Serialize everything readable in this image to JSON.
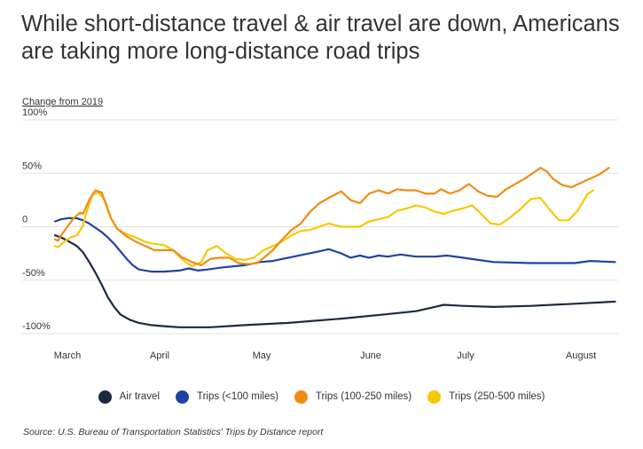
{
  "chart_data": {
    "type": "line",
    "title": "While short-distance travel & air travel are down, Americans are taking more long-distance road trips",
    "ylabel": "Change from 2019",
    "ylim": [
      -100,
      100
    ],
    "yticks": [
      100,
      50,
      0,
      -50,
      -100
    ],
    "ytick_labels": [
      "100%",
      "50%",
      "0",
      "-50%",
      "-100%"
    ],
    "x_months": [
      "March",
      "April",
      "May",
      "June",
      "July",
      "August"
    ],
    "grid": true,
    "legend_position": "bottom",
    "source": "Source: U.S. Bureau of Transportation Statistics' Trips by Distance report",
    "series": [
      {
        "name": "Air travel",
        "color": "#1b2a41",
        "points": [
          [
            "2020-03-01",
            -8
          ],
          [
            "2020-03-03",
            -10
          ],
          [
            "2020-03-05",
            -13
          ],
          [
            "2020-03-08",
            -18
          ],
          [
            "2020-03-10",
            -24
          ],
          [
            "2020-03-12",
            -33
          ],
          [
            "2020-03-14",
            -43
          ],
          [
            "2020-03-16",
            -54
          ],
          [
            "2020-03-18",
            -66
          ],
          [
            "2020-03-20",
            -75
          ],
          [
            "2020-03-22",
            -82
          ],
          [
            "2020-03-25",
            -87
          ],
          [
            "2020-03-28",
            -90
          ],
          [
            "2020-04-01",
            -92
          ],
          [
            "2020-04-05",
            -93
          ],
          [
            "2020-04-10",
            -94
          ],
          [
            "2020-04-20",
            -94
          ],
          [
            "2020-05-01",
            -92
          ],
          [
            "2020-05-15",
            -90
          ],
          [
            "2020-06-01",
            -86
          ],
          [
            "2020-06-15",
            -82
          ],
          [
            "2020-06-25",
            -79
          ],
          [
            "2020-07-01",
            -75
          ],
          [
            "2020-07-04",
            -73
          ],
          [
            "2020-07-10",
            -74
          ],
          [
            "2020-07-20",
            -75
          ],
          [
            "2020-08-01",
            -74
          ],
          [
            "2020-08-15",
            -72
          ],
          [
            "2020-08-28",
            -70
          ]
        ]
      },
      {
        "name": "Trips (<100 miles)",
        "color": "#1f43a0",
        "points": [
          [
            "2020-03-01",
            5
          ],
          [
            "2020-03-03",
            7
          ],
          [
            "2020-03-05",
            8
          ],
          [
            "2020-03-08",
            8
          ],
          [
            "2020-03-10",
            6
          ],
          [
            "2020-03-12",
            3
          ],
          [
            "2020-03-14",
            -1
          ],
          [
            "2020-03-16",
            -5
          ],
          [
            "2020-03-18",
            -10
          ],
          [
            "2020-03-20",
            -16
          ],
          [
            "2020-03-22",
            -23
          ],
          [
            "2020-03-24",
            -30
          ],
          [
            "2020-03-26",
            -36
          ],
          [
            "2020-03-28",
            -40
          ],
          [
            "2020-04-01",
            -42
          ],
          [
            "2020-04-05",
            -42
          ],
          [
            "2020-04-10",
            -41
          ],
          [
            "2020-04-13",
            -39
          ],
          [
            "2020-04-16",
            -41
          ],
          [
            "2020-04-19",
            -40
          ],
          [
            "2020-04-24",
            -38
          ],
          [
            "2020-05-01",
            -36
          ],
          [
            "2020-05-06",
            -33
          ],
          [
            "2020-05-10",
            -32
          ],
          [
            "2020-05-15",
            -29
          ],
          [
            "2020-05-20",
            -26
          ],
          [
            "2020-05-25",
            -23
          ],
          [
            "2020-05-28",
            -21
          ],
          [
            "2020-06-01",
            -25
          ],
          [
            "2020-06-04",
            -29
          ],
          [
            "2020-06-07",
            -27
          ],
          [
            "2020-06-10",
            -29
          ],
          [
            "2020-06-13",
            -27
          ],
          [
            "2020-06-16",
            -28
          ],
          [
            "2020-06-20",
            -26
          ],
          [
            "2020-06-25",
            -28
          ],
          [
            "2020-07-01",
            -28
          ],
          [
            "2020-07-05",
            -27
          ],
          [
            "2020-07-10",
            -29
          ],
          [
            "2020-07-15",
            -31
          ],
          [
            "2020-07-20",
            -33
          ],
          [
            "2020-08-01",
            -34
          ],
          [
            "2020-08-10",
            -34
          ],
          [
            "2020-08-15",
            -34
          ],
          [
            "2020-08-20",
            -32
          ],
          [
            "2020-08-28",
            -33
          ]
        ]
      },
      {
        "name": "Trips (100-250 miles)",
        "color": "#f08c10",
        "points": [
          [
            "2020-03-01",
            -12
          ],
          [
            "2020-03-02",
            -13
          ],
          [
            "2020-03-03",
            -8
          ],
          [
            "2020-03-05",
            0
          ],
          [
            "2020-03-07",
            8
          ],
          [
            "2020-03-09",
            13
          ],
          [
            "2020-03-10",
            12
          ],
          [
            "2020-03-12",
            25
          ],
          [
            "2020-03-14",
            34
          ],
          [
            "2020-03-16",
            32
          ],
          [
            "2020-03-19",
            8
          ],
          [
            "2020-03-21",
            -2
          ],
          [
            "2020-03-24",
            -9
          ],
          [
            "2020-03-27",
            -14
          ],
          [
            "2020-03-30",
            -18
          ],
          [
            "2020-04-02",
            -22
          ],
          [
            "2020-04-05",
            -22
          ],
          [
            "2020-04-08",
            -22
          ],
          [
            "2020-04-11",
            -29
          ],
          [
            "2020-04-14",
            -33
          ],
          [
            "2020-04-17",
            -36
          ],
          [
            "2020-04-20",
            -30
          ],
          [
            "2020-04-23",
            -29
          ],
          [
            "2020-04-26",
            -29
          ],
          [
            "2020-04-29",
            -34
          ],
          [
            "2020-05-02",
            -35
          ],
          [
            "2020-05-05",
            -34
          ],
          [
            "2020-05-08",
            -27
          ],
          [
            "2020-05-10",
            -22
          ],
          [
            "2020-05-13",
            -12
          ],
          [
            "2020-05-16",
            -3
          ],
          [
            "2020-05-19",
            3
          ],
          [
            "2020-05-22",
            14
          ],
          [
            "2020-05-25",
            22
          ],
          [
            "2020-05-28",
            27
          ],
          [
            "2020-06-01",
            33
          ],
          [
            "2020-06-04",
            25
          ],
          [
            "2020-06-07",
            22
          ],
          [
            "2020-06-10",
            31
          ],
          [
            "2020-06-13",
            34
          ],
          [
            "2020-06-16",
            31
          ],
          [
            "2020-06-19",
            35
          ],
          [
            "2020-06-22",
            34
          ],
          [
            "2020-06-25",
            34
          ],
          [
            "2020-06-28",
            31
          ],
          [
            "2020-07-01",
            31
          ],
          [
            "2020-07-03",
            35
          ],
          [
            "2020-07-06",
            31
          ],
          [
            "2020-07-09",
            34
          ],
          [
            "2020-07-12",
            40
          ],
          [
            "2020-07-15",
            33
          ],
          [
            "2020-07-18",
            29
          ],
          [
            "2020-07-21",
            28
          ],
          [
            "2020-07-24",
            35
          ],
          [
            "2020-07-27",
            40
          ],
          [
            "2020-07-30",
            45
          ],
          [
            "2020-08-02",
            51
          ],
          [
            "2020-08-04",
            55
          ],
          [
            "2020-08-06",
            52
          ],
          [
            "2020-08-08",
            45
          ],
          [
            "2020-08-11",
            39
          ],
          [
            "2020-08-14",
            37
          ],
          [
            "2020-08-17",
            41
          ],
          [
            "2020-08-20",
            45
          ],
          [
            "2020-08-23",
            49
          ],
          [
            "2020-08-26",
            55
          ]
        ]
      },
      {
        "name": "Trips (250-500 miles)",
        "color": "#f7c800",
        "points": [
          [
            "2020-03-01",
            -18
          ],
          [
            "2020-03-02",
            -19
          ],
          [
            "2020-03-04",
            -14
          ],
          [
            "2020-03-06",
            -10
          ],
          [
            "2020-03-08",
            -8
          ],
          [
            "2020-03-10",
            1
          ],
          [
            "2020-03-11",
            12
          ],
          [
            "2020-03-13",
            30
          ],
          [
            "2020-03-15",
            32
          ],
          [
            "2020-03-17",
            25
          ],
          [
            "2020-03-19",
            8
          ],
          [
            "2020-03-21",
            -2
          ],
          [
            "2020-03-24",
            -7
          ],
          [
            "2020-03-27",
            -10
          ],
          [
            "2020-03-30",
            -14
          ],
          [
            "2020-04-02",
            -16
          ],
          [
            "2020-04-05",
            -17
          ],
          [
            "2020-04-08",
            -22
          ],
          [
            "2020-04-11",
            -31
          ],
          [
            "2020-04-14",
            -37
          ],
          [
            "2020-04-17",
            -33
          ],
          [
            "2020-04-19",
            -22
          ],
          [
            "2020-04-22",
            -18
          ],
          [
            "2020-04-25",
            -25
          ],
          [
            "2020-04-28",
            -30
          ],
          [
            "2020-05-01",
            -31
          ],
          [
            "2020-05-04",
            -29
          ],
          [
            "2020-05-07",
            -22
          ],
          [
            "2020-05-10",
            -18
          ],
          [
            "2020-05-13",
            -14
          ],
          [
            "2020-05-16",
            -8
          ],
          [
            "2020-05-19",
            -4
          ],
          [
            "2020-05-22",
            -3
          ],
          [
            "2020-05-25",
            0
          ],
          [
            "2020-05-28",
            3
          ],
          [
            "2020-06-01",
            0
          ],
          [
            "2020-06-04",
            0
          ],
          [
            "2020-06-07",
            0
          ],
          [
            "2020-06-10",
            5
          ],
          [
            "2020-06-13",
            7
          ],
          [
            "2020-06-16",
            9
          ],
          [
            "2020-06-19",
            15
          ],
          [
            "2020-06-22",
            17
          ],
          [
            "2020-06-25",
            20
          ],
          [
            "2020-06-28",
            18
          ],
          [
            "2020-07-01",
            14
          ],
          [
            "2020-07-04",
            12
          ],
          [
            "2020-07-07",
            15
          ],
          [
            "2020-07-10",
            17
          ],
          [
            "2020-07-13",
            20
          ],
          [
            "2020-07-16",
            12
          ],
          [
            "2020-07-19",
            3
          ],
          [
            "2020-07-22",
            2
          ],
          [
            "2020-07-25",
            8
          ],
          [
            "2020-07-28",
            15
          ],
          [
            "2020-08-01",
            26
          ],
          [
            "2020-08-04",
            27
          ],
          [
            "2020-08-07",
            16
          ],
          [
            "2020-08-10",
            6
          ],
          [
            "2020-08-13",
            6
          ],
          [
            "2020-08-16",
            15
          ],
          [
            "2020-08-19",
            30
          ],
          [
            "2020-08-21",
            34
          ]
        ]
      }
    ]
  }
}
